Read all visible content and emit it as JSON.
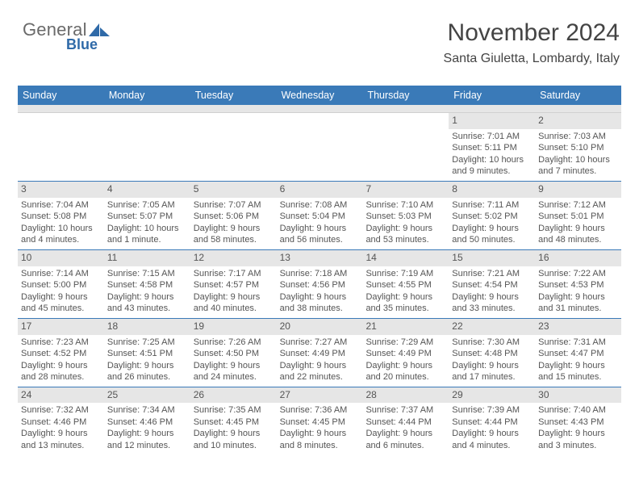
{
  "logo": {
    "part1": "General",
    "part2": "Blue"
  },
  "title": "November 2024",
  "location": "Santa Giuletta, Lombardy, Italy",
  "colors": {
    "header_bg": "#3a7ab8",
    "header_text": "#ffffff",
    "daynum_bg": "#e6e6e6",
    "text": "#444444",
    "rule": "#3a7ab8"
  },
  "day_headers": [
    "Sunday",
    "Monday",
    "Tuesday",
    "Wednesday",
    "Thursday",
    "Friday",
    "Saturday"
  ],
  "weeks": [
    [
      {
        "n": "",
        "empty": true
      },
      {
        "n": "",
        "empty": true
      },
      {
        "n": "",
        "empty": true
      },
      {
        "n": "",
        "empty": true
      },
      {
        "n": "",
        "empty": true
      },
      {
        "n": "1",
        "sunrise": "7:01 AM",
        "sunset": "5:11 PM",
        "daylight": "10 hours and 9 minutes."
      },
      {
        "n": "2",
        "sunrise": "7:03 AM",
        "sunset": "5:10 PM",
        "daylight": "10 hours and 7 minutes."
      }
    ],
    [
      {
        "n": "3",
        "sunrise": "7:04 AM",
        "sunset": "5:08 PM",
        "daylight": "10 hours and 4 minutes."
      },
      {
        "n": "4",
        "sunrise": "7:05 AM",
        "sunset": "5:07 PM",
        "daylight": "10 hours and 1 minute."
      },
      {
        "n": "5",
        "sunrise": "7:07 AM",
        "sunset": "5:06 PM",
        "daylight": "9 hours and 58 minutes."
      },
      {
        "n": "6",
        "sunrise": "7:08 AM",
        "sunset": "5:04 PM",
        "daylight": "9 hours and 56 minutes."
      },
      {
        "n": "7",
        "sunrise": "7:10 AM",
        "sunset": "5:03 PM",
        "daylight": "9 hours and 53 minutes."
      },
      {
        "n": "8",
        "sunrise": "7:11 AM",
        "sunset": "5:02 PM",
        "daylight": "9 hours and 50 minutes."
      },
      {
        "n": "9",
        "sunrise": "7:12 AM",
        "sunset": "5:01 PM",
        "daylight": "9 hours and 48 minutes."
      }
    ],
    [
      {
        "n": "10",
        "sunrise": "7:14 AM",
        "sunset": "5:00 PM",
        "daylight": "9 hours and 45 minutes."
      },
      {
        "n": "11",
        "sunrise": "7:15 AM",
        "sunset": "4:58 PM",
        "daylight": "9 hours and 43 minutes."
      },
      {
        "n": "12",
        "sunrise": "7:17 AM",
        "sunset": "4:57 PM",
        "daylight": "9 hours and 40 minutes."
      },
      {
        "n": "13",
        "sunrise": "7:18 AM",
        "sunset": "4:56 PM",
        "daylight": "9 hours and 38 minutes."
      },
      {
        "n": "14",
        "sunrise": "7:19 AM",
        "sunset": "4:55 PM",
        "daylight": "9 hours and 35 minutes."
      },
      {
        "n": "15",
        "sunrise": "7:21 AM",
        "sunset": "4:54 PM",
        "daylight": "9 hours and 33 minutes."
      },
      {
        "n": "16",
        "sunrise": "7:22 AM",
        "sunset": "4:53 PM",
        "daylight": "9 hours and 31 minutes."
      }
    ],
    [
      {
        "n": "17",
        "sunrise": "7:23 AM",
        "sunset": "4:52 PM",
        "daylight": "9 hours and 28 minutes."
      },
      {
        "n": "18",
        "sunrise": "7:25 AM",
        "sunset": "4:51 PM",
        "daylight": "9 hours and 26 minutes."
      },
      {
        "n": "19",
        "sunrise": "7:26 AM",
        "sunset": "4:50 PM",
        "daylight": "9 hours and 24 minutes."
      },
      {
        "n": "20",
        "sunrise": "7:27 AM",
        "sunset": "4:49 PM",
        "daylight": "9 hours and 22 minutes."
      },
      {
        "n": "21",
        "sunrise": "7:29 AM",
        "sunset": "4:49 PM",
        "daylight": "9 hours and 20 minutes."
      },
      {
        "n": "22",
        "sunrise": "7:30 AM",
        "sunset": "4:48 PM",
        "daylight": "9 hours and 17 minutes."
      },
      {
        "n": "23",
        "sunrise": "7:31 AM",
        "sunset": "4:47 PM",
        "daylight": "9 hours and 15 minutes."
      }
    ],
    [
      {
        "n": "24",
        "sunrise": "7:32 AM",
        "sunset": "4:46 PM",
        "daylight": "9 hours and 13 minutes."
      },
      {
        "n": "25",
        "sunrise": "7:34 AM",
        "sunset": "4:46 PM",
        "daylight": "9 hours and 12 minutes."
      },
      {
        "n": "26",
        "sunrise": "7:35 AM",
        "sunset": "4:45 PM",
        "daylight": "9 hours and 10 minutes."
      },
      {
        "n": "27",
        "sunrise": "7:36 AM",
        "sunset": "4:45 PM",
        "daylight": "9 hours and 8 minutes."
      },
      {
        "n": "28",
        "sunrise": "7:37 AM",
        "sunset": "4:44 PM",
        "daylight": "9 hours and 6 minutes."
      },
      {
        "n": "29",
        "sunrise": "7:39 AM",
        "sunset": "4:44 PM",
        "daylight": "9 hours and 4 minutes."
      },
      {
        "n": "30",
        "sunrise": "7:40 AM",
        "sunset": "4:43 PM",
        "daylight": "9 hours and 3 minutes."
      }
    ]
  ]
}
